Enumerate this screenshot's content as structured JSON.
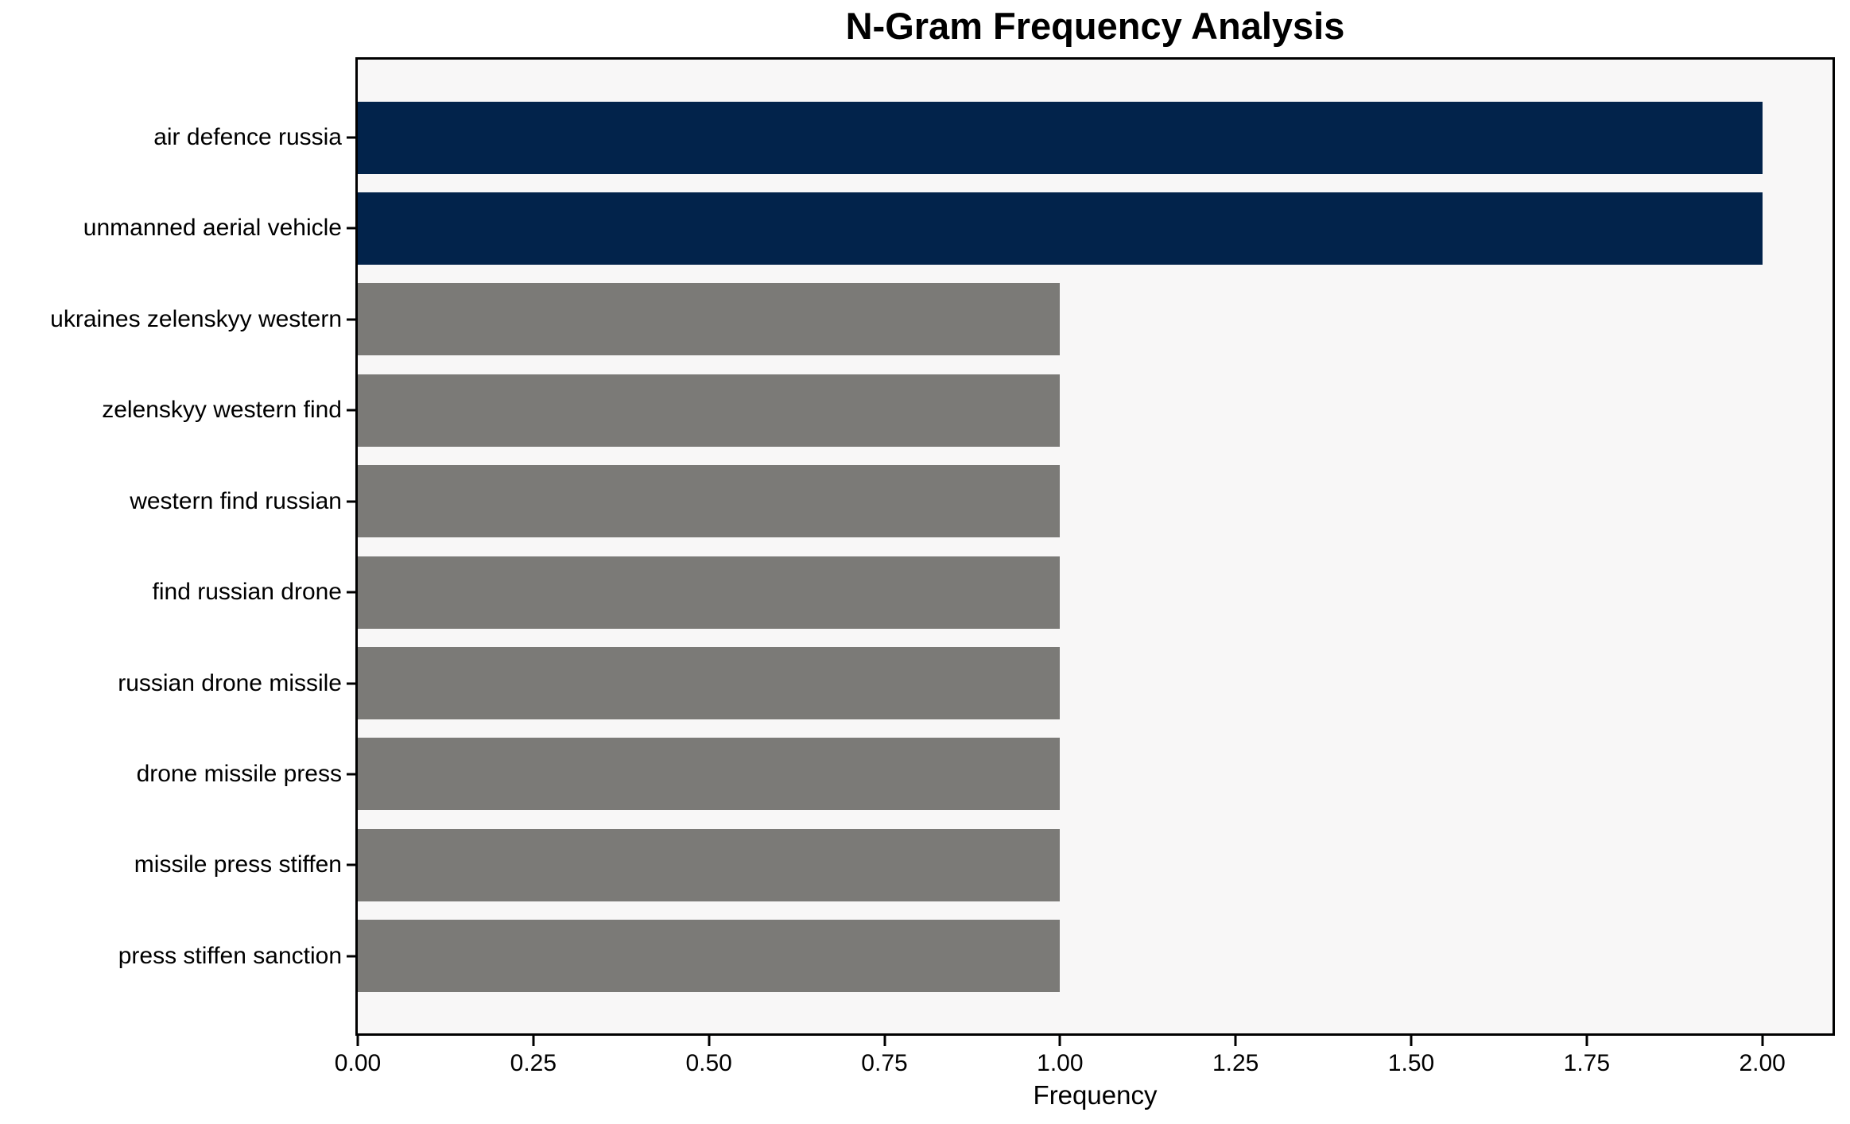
{
  "chart_data": {
    "type": "bar",
    "orientation": "horizontal",
    "title": "N-Gram Frequency Analysis",
    "xlabel": "Frequency",
    "ylabel": "",
    "categories": [
      "air defence russia",
      "unmanned aerial vehicle",
      "ukraines zelenskyy western",
      "zelenskyy western find",
      "western find russian",
      "find russian drone",
      "russian drone missile",
      "drone missile press",
      "missile press stiffen",
      "press stiffen sanction"
    ],
    "values": [
      2,
      2,
      1,
      1,
      1,
      1,
      1,
      1,
      1,
      1
    ],
    "bar_colors": [
      "#02234B",
      "#02234B",
      "#7B7A77",
      "#7B7A77",
      "#7B7A77",
      "#7B7A77",
      "#7B7A77",
      "#7B7A77",
      "#7B7A77",
      "#7B7A77"
    ],
    "xlim": [
      0,
      2.1
    ],
    "xticks": [
      {
        "value": 0.0,
        "label": "0.00"
      },
      {
        "value": 0.25,
        "label": "0.25"
      },
      {
        "value": 0.5,
        "label": "0.50"
      },
      {
        "value": 0.75,
        "label": "0.75"
      },
      {
        "value": 1.0,
        "label": "1.00"
      },
      {
        "value": 1.25,
        "label": "1.25"
      },
      {
        "value": 1.5,
        "label": "1.50"
      },
      {
        "value": 1.75,
        "label": "1.75"
      },
      {
        "value": 2.0,
        "label": "2.00"
      }
    ],
    "grid": false,
    "legend": null,
    "colors": {
      "highlight_bar": "#02234B",
      "default_bar": "#7B7A77",
      "plot_background": "#F8F7F7",
      "figure_background": "#FFFFFF",
      "spine": "#000000",
      "text": "#000000"
    }
  }
}
